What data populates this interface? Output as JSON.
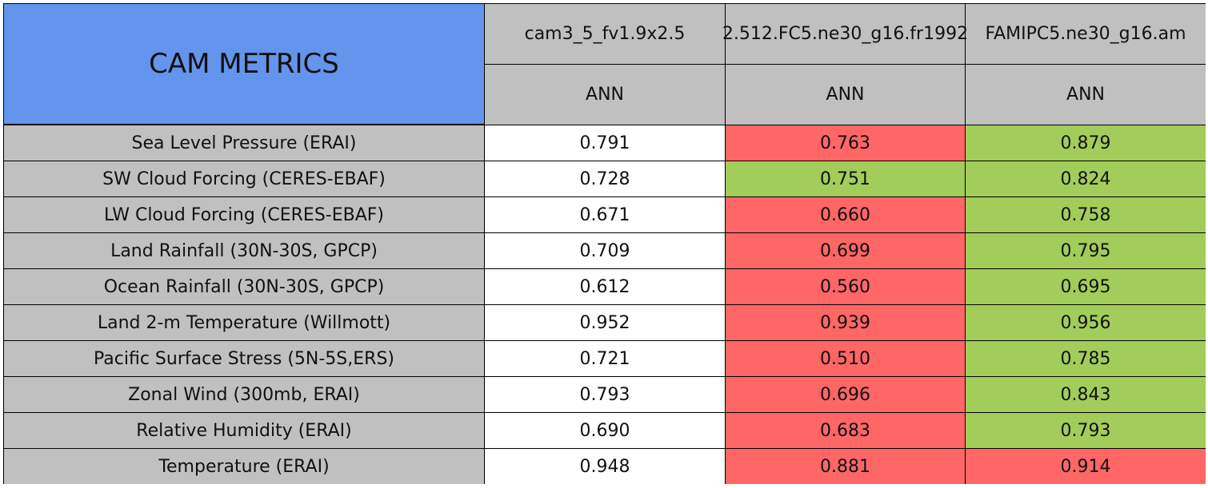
{
  "header": {
    "title": "CAM METRICS",
    "columns": [
      "cam3_5_fv1.9x2.5",
      "2.512.FC5.ne30_g16.fr1992",
      "FAMIPC5.ne30_g16.am"
    ],
    "seasons": [
      "ANN",
      "ANN",
      "ANN"
    ],
    "title_color": "#6495ed",
    "header_color": "#c0c0c0"
  },
  "table": {
    "label_color": "#c0c0c0",
    "rows": [
      {
        "label": "Sea Level Pressure (ERAI)",
        "values": [
          "0.791",
          "0.763",
          "0.879"
        ],
        "colors": [
          "#ffffff",
          "#ff6666",
          "#a2cd5a"
        ]
      },
      {
        "label": "SW Cloud Forcing (CERES-EBAF)",
        "values": [
          "0.728",
          "0.751",
          "0.824"
        ],
        "colors": [
          "#ffffff",
          "#a2cd5a",
          "#a2cd5a"
        ]
      },
      {
        "label": "LW Cloud Forcing (CERES-EBAF)",
        "values": [
          "0.671",
          "0.660",
          "0.758"
        ],
        "colors": [
          "#ffffff",
          "#ff6666",
          "#a2cd5a"
        ]
      },
      {
        "label": "Land Rainfall (30N-30S, GPCP)",
        "values": [
          "0.709",
          "0.699",
          "0.795"
        ],
        "colors": [
          "#ffffff",
          "#ff6666",
          "#a2cd5a"
        ]
      },
      {
        "label": "Ocean Rainfall (30N-30S, GPCP)",
        "values": [
          "0.612",
          "0.560",
          "0.695"
        ],
        "colors": [
          "#ffffff",
          "#ff6666",
          "#a2cd5a"
        ]
      },
      {
        "label": "Land 2-m Temperature (Willmott)",
        "values": [
          "0.952",
          "0.939",
          "0.956"
        ],
        "colors": [
          "#ffffff",
          "#ff6666",
          "#a2cd5a"
        ]
      },
      {
        "label": "Pacific Surface Stress (5N-5S,ERS)",
        "values": [
          "0.721",
          "0.510",
          "0.785"
        ],
        "colors": [
          "#ffffff",
          "#ff6666",
          "#a2cd5a"
        ]
      },
      {
        "label": "Zonal Wind (300mb, ERAI)",
        "values": [
          "0.793",
          "0.696",
          "0.843"
        ],
        "colors": [
          "#ffffff",
          "#ff6666",
          "#a2cd5a"
        ]
      },
      {
        "label": "Relative Humidity (ERAI)",
        "values": [
          "0.690",
          "0.683",
          "0.793"
        ],
        "colors": [
          "#ffffff",
          "#ff6666",
          "#a2cd5a"
        ]
      },
      {
        "label": "Temperature (ERAI)",
        "values": [
          "0.948",
          "0.881",
          "0.914"
        ],
        "colors": [
          "#ffffff",
          "#ff6666",
          "#ff6666"
        ]
      }
    ]
  }
}
